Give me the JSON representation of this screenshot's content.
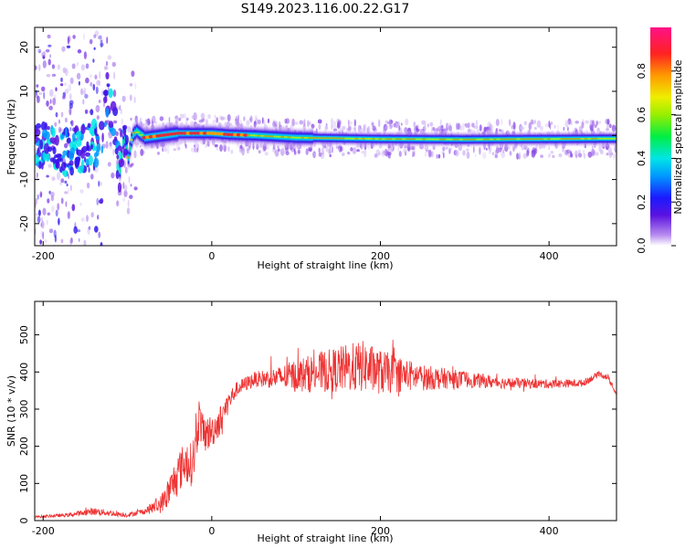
{
  "title": "S149.2023.116.00.22.G17",
  "colors": {
    "snr_line": "#ee3333",
    "ridge_core": "#e8283a",
    "background": "#ffffff",
    "axis": "#000000"
  },
  "chart_data": [
    {
      "type": "heatmap",
      "xlabel": "Height of straight line (km)",
      "ylabel": "Frequency (Hz)",
      "xlim": [
        -210,
        480
      ],
      "ylim": [
        -25,
        24.5
      ],
      "xticks": [
        "-200",
        "0",
        "200",
        "400"
      ],
      "yticks": [
        "-20",
        "-10",
        "0",
        "10",
        "20"
      ],
      "grid": false,
      "colorbar": {
        "label": "Normalized spectral amplitude",
        "range": [
          0,
          1
        ],
        "ticks": [
          "0.0",
          "0.2",
          "0.4",
          "0.6",
          "0.8"
        ],
        "colormap": "white-purple-blue-cyan-green-yellow-orange-red-magenta"
      },
      "ridge": {
        "x": [
          -210,
          -180,
          -150,
          -130,
          -125,
          -120,
          -115,
          -110,
          -105,
          -100,
          -95,
          -90,
          -80,
          -60,
          -40,
          -20,
          0,
          20,
          50,
          100,
          200,
          300,
          400,
          480
        ],
        "y": [
          -2,
          -4,
          -3,
          -1,
          10,
          6,
          2,
          -8,
          0,
          -5,
          0,
          1,
          -0.5,
          0,
          0.5,
          0.5,
          0.5,
          0.2,
          0,
          -0.5,
          -0.8,
          -0.9,
          -0.8,
          -0.7
        ],
        "peak_amplitude_range_x": [
          -80,
          40
        ]
      }
    },
    {
      "type": "line",
      "xlabel": "Height of straight line (km)",
      "ylabel": "SNR (10 * v/v)",
      "xlim": [
        -210,
        480
      ],
      "ylim": [
        0,
        590
      ],
      "xticks": [
        "-200",
        "0",
        "200",
        "400"
      ],
      "yticks": [
        "0",
        "100",
        "200",
        "300",
        "400",
        "500"
      ],
      "grid": false,
      "series": [
        {
          "x": [
            -210,
            -170,
            -140,
            -100,
            -80,
            -60,
            -50,
            -40,
            -30,
            -25,
            -20,
            -15,
            -10,
            0,
            10,
            20,
            30,
            50,
            80,
            100,
            130,
            160,
            180,
            200,
            250,
            300,
            350,
            400,
            440,
            460,
            470,
            480
          ],
          "y": [
            10,
            15,
            25,
            15,
            25,
            45,
            80,
            130,
            160,
            150,
            180,
            280,
            230,
            240,
            270,
            320,
            355,
            380,
            385,
            390,
            400,
            410,
            415,
            400,
            385,
            380,
            370,
            368,
            370,
            395,
            385,
            340
          ],
          "noise": [
            3,
            5,
            10,
            6,
            8,
            25,
            45,
            55,
            60,
            60,
            60,
            55,
            50,
            45,
            40,
            30,
            20,
            20,
            30,
            45,
            55,
            65,
            70,
            60,
            35,
            22,
            15,
            12,
            10,
            8,
            8,
            6
          ]
        }
      ]
    }
  ]
}
